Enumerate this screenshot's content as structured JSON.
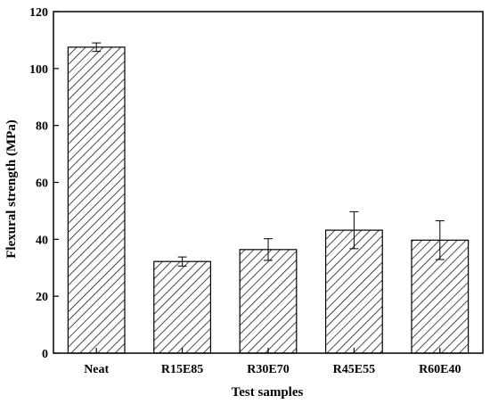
{
  "chart_data": {
    "type": "bar",
    "title": "",
    "xlabel": "Test samples",
    "ylabel": "Flexural strength (MPa)",
    "categories": [
      "Neat",
      "R15E85",
      "R30E70",
      "R45E55",
      "R60E40"
    ],
    "values": [
      107.5,
      32.2,
      36.4,
      43.2,
      39.7
    ],
    "errors": [
      1.5,
      1.6,
      3.8,
      6.5,
      6.8
    ],
    "ylim": [
      0,
      120
    ],
    "yticks": [
      0,
      20,
      40,
      60,
      80,
      100,
      120
    ],
    "bar_pattern": "diagonal-hatch",
    "bar_color": "#000000",
    "grid": false,
    "legend": "none"
  }
}
